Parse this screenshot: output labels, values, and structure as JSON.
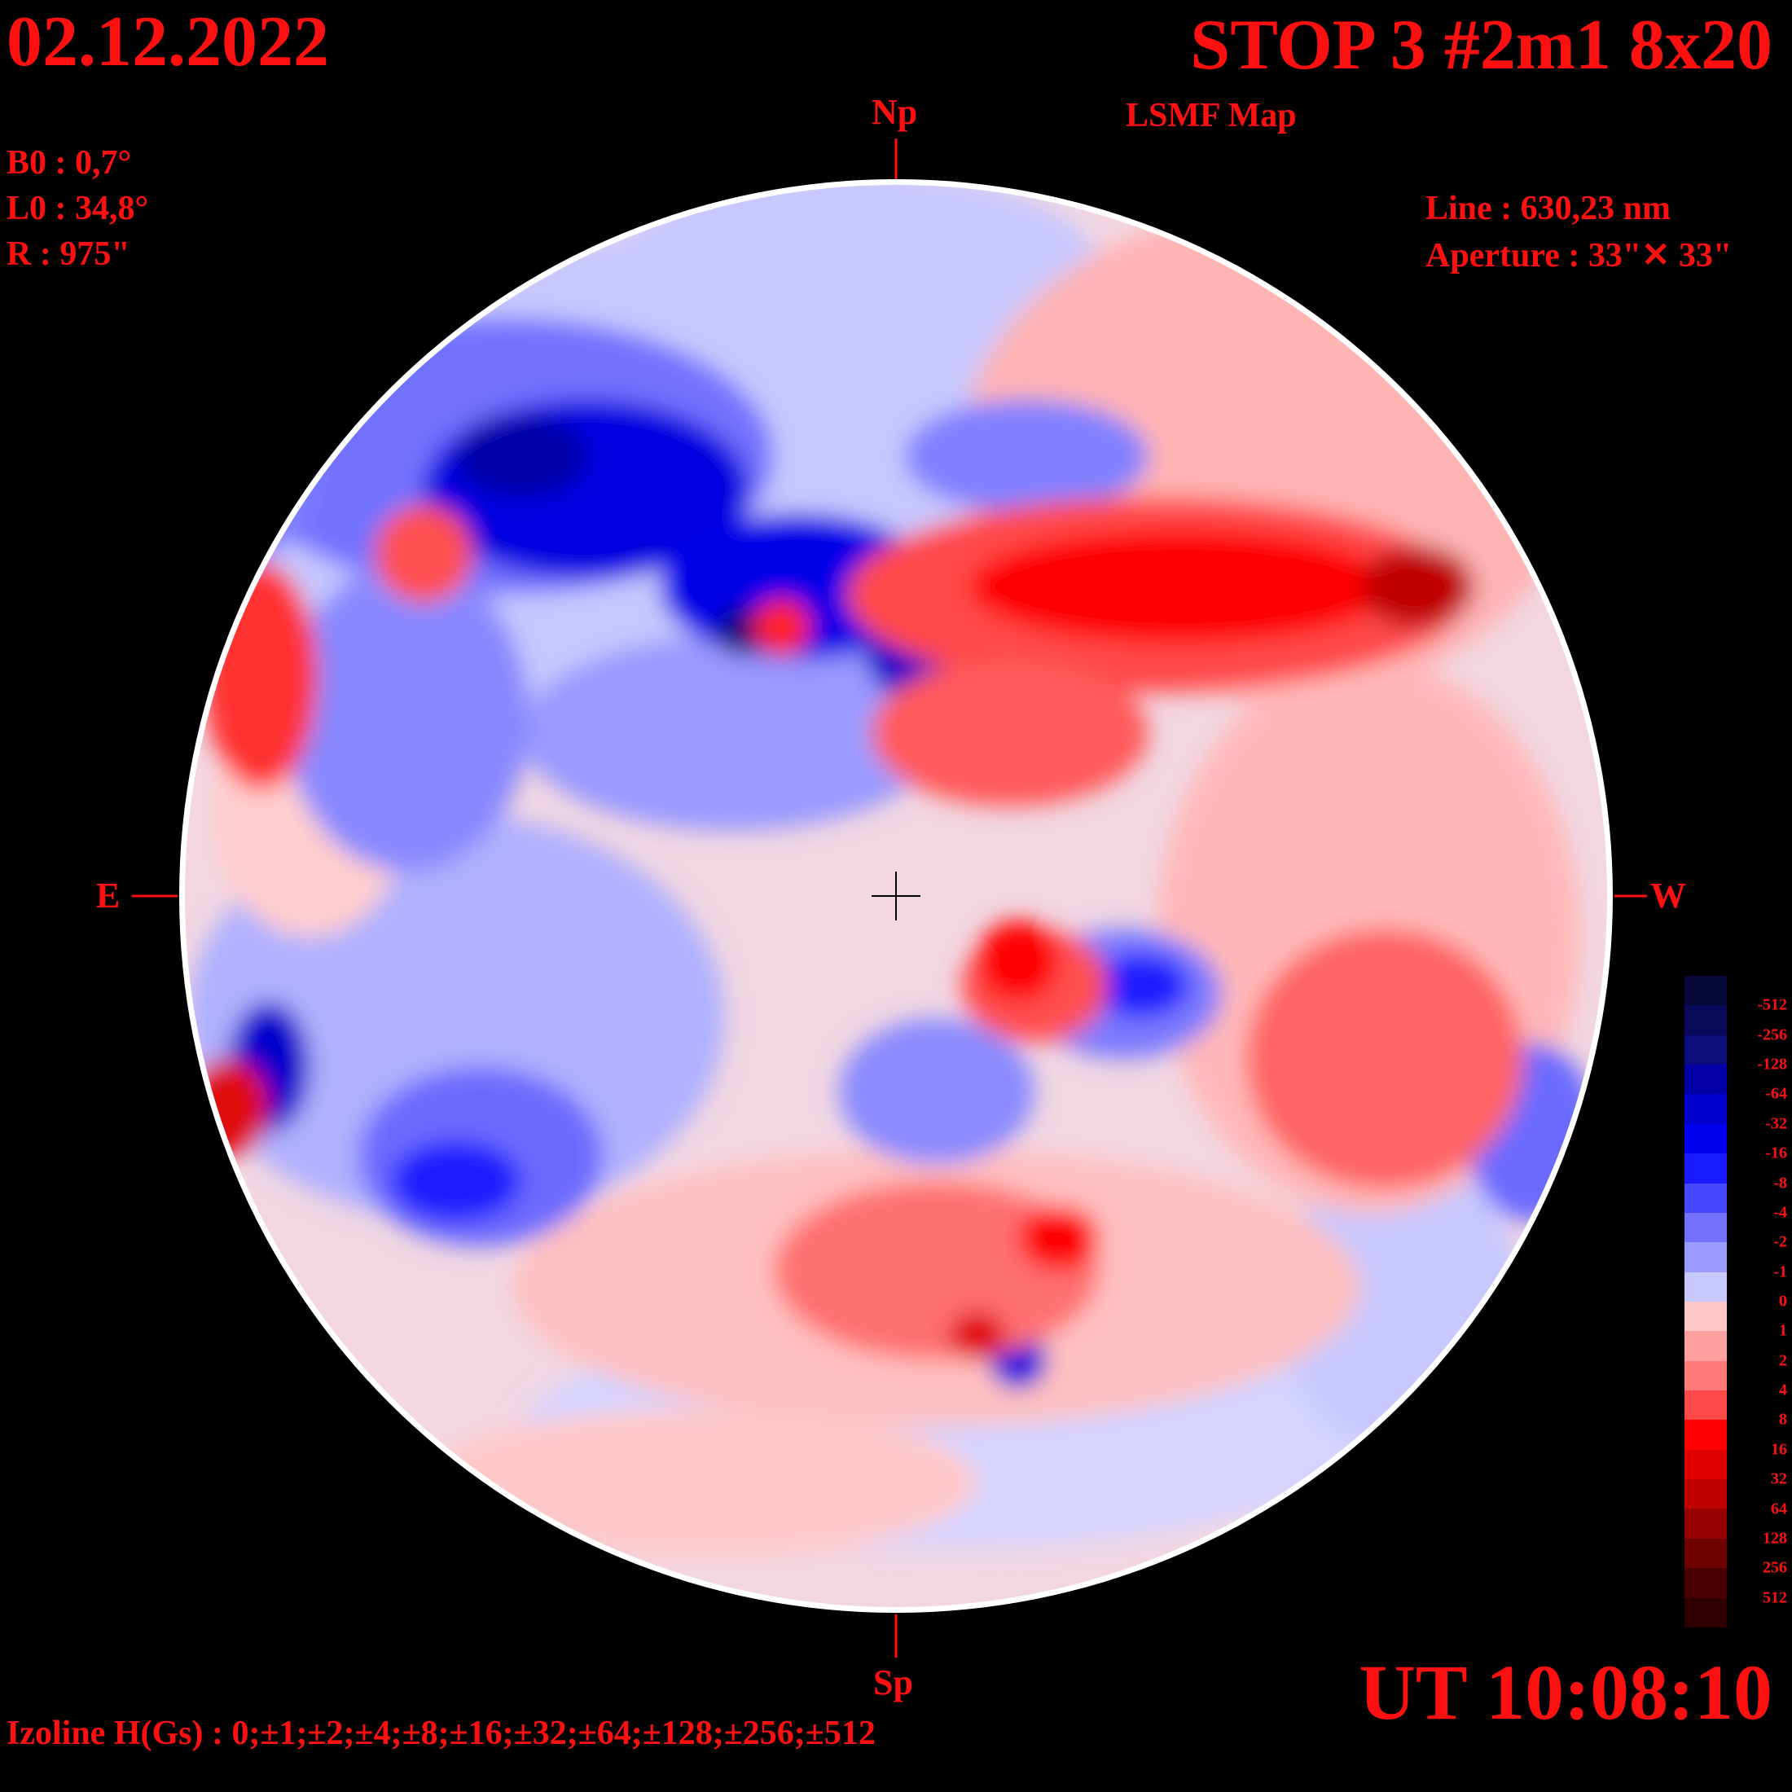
{
  "header": {
    "date": "02.12.2022",
    "title": "STOP 3 #2m1 8x20",
    "subtitle": "LSMF  Map"
  },
  "params": {
    "b0": "B0 : 0,7°",
    "l0": "L0 : 34,8°",
    "r": "R  : 975\""
  },
  "instrument": {
    "line": "Line :  630,23 nm",
    "aperture": "Aperture : 33\"✕ 33\""
  },
  "compass": {
    "north": "Np",
    "south": "Sp",
    "east": "E",
    "west": "W"
  },
  "time": "UT 10:08:10",
  "izoline": "Izoline H(Gs) : 0;±1;±2;±4;±8;±16;±32;±64;±128;±256;±512",
  "legend": {
    "labels": [
      "-512",
      "-256",
      "-128",
      "-64",
      "-32",
      "-16",
      "-8",
      "-4",
      "-2",
      "-1",
      "0",
      "1",
      "2",
      "4",
      "8",
      "16",
      "32",
      "64",
      "128",
      "256",
      "512"
    ],
    "colors": [
      "#07073a",
      "#0a0a5a",
      "#0c0c7a",
      "#0000a6",
      "#0000cc",
      "#0000f0",
      "#1a1aff",
      "#4747ff",
      "#7272ff",
      "#9a9aff",
      "#c8c8ff",
      "#ffc8c8",
      "#ffa0a0",
      "#ff7878",
      "#ff4848",
      "#ff0000",
      "#e00000",
      "#c00000",
      "#980000",
      "#6e0000",
      "#4a0000",
      "#300000"
    ]
  }
}
